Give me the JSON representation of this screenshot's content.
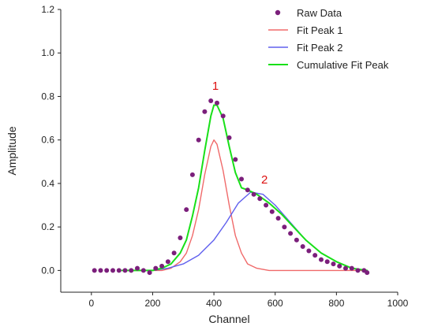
{
  "chart_data": {
    "type": "scatter",
    "title": "",
    "xlabel": "Channel",
    "ylabel": "Amplitude",
    "xlim": [
      -100,
      1000
    ],
    "ylim": [
      -0.1,
      1.2
    ],
    "x_ticks": [
      0,
      200,
      400,
      600,
      800,
      1000
    ],
    "y_ticks": [
      0.0,
      0.2,
      0.4,
      0.6,
      0.8,
      1.0,
      1.2
    ],
    "x_tick_labels": [
      "0",
      "200",
      "400",
      "600",
      "800",
      "1000"
    ],
    "y_tick_labels": [
      "0.0",
      "0.2",
      "0.4",
      "0.6",
      "0.8",
      "1.0",
      "1.2"
    ],
    "grid": false,
    "legend_position": "top-right",
    "series": [
      {
        "name": "Raw Data",
        "kind": "scatter",
        "color": "#7b1f7b",
        "x": [
          10,
          30,
          50,
          70,
          90,
          110,
          130,
          150,
          170,
          190,
          210,
          230,
          250,
          270,
          290,
          310,
          330,
          350,
          370,
          390,
          410,
          430,
          450,
          470,
          490,
          510,
          530,
          550,
          570,
          590,
          610,
          630,
          650,
          670,
          690,
          710,
          730,
          750,
          770,
          790,
          810,
          830,
          850,
          870,
          890,
          900
        ],
        "y": [
          0.0,
          0.0,
          0.0,
          0.0,
          0.0,
          0.0,
          0.0,
          0.01,
          0.0,
          -0.01,
          0.01,
          0.02,
          0.04,
          0.08,
          0.15,
          0.28,
          0.44,
          0.6,
          0.73,
          0.78,
          0.77,
          0.71,
          0.61,
          0.51,
          0.42,
          0.37,
          0.35,
          0.33,
          0.3,
          0.27,
          0.24,
          0.2,
          0.17,
          0.14,
          0.11,
          0.09,
          0.07,
          0.05,
          0.04,
          0.03,
          0.02,
          0.01,
          0.01,
          0.0,
          0.0,
          -0.01
        ]
      },
      {
        "name": "Fit Peak 1",
        "kind": "line",
        "color": "#f06a6a",
        "x": [
          100,
          150,
          200,
          230,
          260,
          290,
          310,
          330,
          350,
          370,
          390,
          400,
          410,
          430,
          450,
          470,
          490,
          510,
          540,
          580,
          620,
          700,
          800,
          900
        ],
        "y": [
          0.0,
          0.0,
          0.0,
          0.0,
          0.01,
          0.04,
          0.08,
          0.16,
          0.28,
          0.44,
          0.57,
          0.6,
          0.58,
          0.46,
          0.3,
          0.16,
          0.08,
          0.03,
          0.01,
          0.0,
          0.0,
          0.0,
          0.0,
          0.0
        ]
      },
      {
        "name": "Fit Peak 2",
        "kind": "line",
        "color": "#6060ee",
        "x": [
          200,
          250,
          300,
          350,
          400,
          440,
          480,
          520,
          560,
          600,
          650,
          700,
          750,
          800,
          850,
          900
        ],
        "y": [
          0.0,
          0.01,
          0.03,
          0.07,
          0.14,
          0.22,
          0.31,
          0.36,
          0.35,
          0.3,
          0.22,
          0.14,
          0.08,
          0.04,
          0.01,
          0.0
        ]
      },
      {
        "name": "Cumulative Fit Peak",
        "kind": "line",
        "color": "#18e018",
        "x": [
          100,
          150,
          200,
          230,
          260,
          290,
          310,
          330,
          350,
          370,
          390,
          400,
          410,
          430,
          450,
          470,
          490,
          510,
          540,
          580,
          620,
          660,
          700,
          750,
          800,
          850,
          900
        ],
        "y": [
          0.0,
          0.0,
          0.0,
          0.01,
          0.03,
          0.08,
          0.14,
          0.25,
          0.38,
          0.55,
          0.71,
          0.76,
          0.76,
          0.7,
          0.57,
          0.45,
          0.38,
          0.37,
          0.35,
          0.31,
          0.26,
          0.2,
          0.14,
          0.08,
          0.04,
          0.01,
          0.0
        ]
      }
    ],
    "annotations": [
      {
        "text": "1",
        "x": 405,
        "y": 0.83,
        "color": "#dd1111"
      },
      {
        "text": "2",
        "x": 565,
        "y": 0.4,
        "color": "#dd1111"
      }
    ]
  }
}
